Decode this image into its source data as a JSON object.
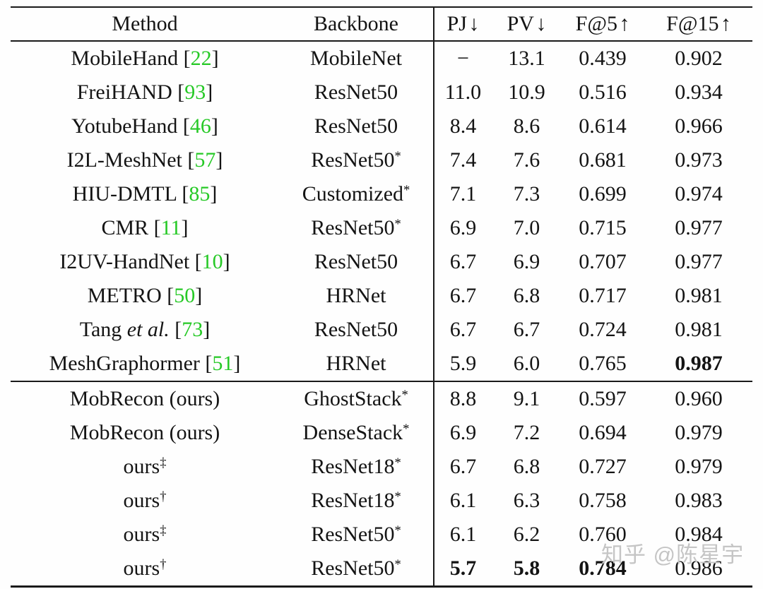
{
  "colors": {
    "citation_green": "#26c926",
    "text": "#141414",
    "rule": "#1a1a1a",
    "background": "#fefefe",
    "watermark_gray": "#c5c5c5"
  },
  "table": {
    "citation_brackets": [
      "[",
      "]"
    ],
    "headers": [
      {
        "key": "method",
        "label": "Method",
        "arrow": ""
      },
      {
        "key": "backbone",
        "label": "Backbone",
        "arrow": ""
      },
      {
        "key": "pj",
        "label": "PJ",
        "arrow": "↓"
      },
      {
        "key": "pv",
        "label": "PV",
        "arrow": "↓"
      },
      {
        "key": "f5",
        "label": "F@5",
        "arrow": "↑"
      },
      {
        "key": "f15",
        "label": "F@15",
        "arrow": "↑"
      }
    ],
    "groups": [
      {
        "name": "prior-methods",
        "rows": [
          {
            "name": "MobileHand",
            "etal": "",
            "cite": "22",
            "sup": "",
            "backbone": "MobileNet",
            "star": "",
            "pj": "−",
            "pv": "13.1",
            "f5": "0.439",
            "f15": "0.902",
            "bold": []
          },
          {
            "name": "FreiHAND",
            "etal": "",
            "cite": "93",
            "sup": "",
            "backbone": "ResNet50",
            "star": "",
            "pj": "11.0",
            "pv": "10.9",
            "f5": "0.516",
            "f15": "0.934",
            "bold": []
          },
          {
            "name": "YotubeHand",
            "etal": "",
            "cite": "46",
            "sup": "",
            "backbone": "ResNet50",
            "star": "",
            "pj": "8.4",
            "pv": "8.6",
            "f5": "0.614",
            "f15": "0.966",
            "bold": []
          },
          {
            "name": "I2L-MeshNet",
            "etal": "",
            "cite": "57",
            "sup": "",
            "backbone": "ResNet50",
            "star": "*",
            "pj": "7.4",
            "pv": "7.6",
            "f5": "0.681",
            "f15": "0.973",
            "bold": []
          },
          {
            "name": "HIU-DMTL",
            "etal": "",
            "cite": "85",
            "sup": "",
            "backbone": "Customized",
            "star": "*",
            "pj": "7.1",
            "pv": "7.3",
            "f5": "0.699",
            "f15": "0.974",
            "bold": []
          },
          {
            "name": "CMR",
            "etal": "",
            "cite": "11",
            "sup": "",
            "backbone": "ResNet50",
            "star": "*",
            "pj": "6.9",
            "pv": "7.0",
            "f5": "0.715",
            "f15": "0.977",
            "bold": []
          },
          {
            "name": "I2UV-HandNet",
            "etal": "",
            "cite": "10",
            "sup": "",
            "backbone": "ResNet50",
            "star": "",
            "pj": "6.7",
            "pv": "6.9",
            "f5": "0.707",
            "f15": "0.977",
            "bold": []
          },
          {
            "name": "METRO",
            "etal": "",
            "cite": "50",
            "sup": "",
            "backbone": "HRNet",
            "star": "",
            "pj": "6.7",
            "pv": "6.8",
            "f5": "0.717",
            "f15": "0.981",
            "bold": []
          },
          {
            "name": "Tang",
            "etal": "et al.",
            "cite": "73",
            "sup": "",
            "backbone": "ResNet50",
            "star": "",
            "pj": "6.7",
            "pv": "6.7",
            "f5": "0.724",
            "f15": "0.981",
            "bold": []
          },
          {
            "name": "MeshGraphormer",
            "etal": "",
            "cite": "51",
            "sup": "",
            "backbone": "HRNet",
            "star": "",
            "pj": "5.9",
            "pv": "6.0",
            "f5": "0.765",
            "f15": "0.987",
            "bold": [
              "f15"
            ]
          }
        ]
      },
      {
        "name": "ours",
        "rows": [
          {
            "name": "MobRecon (ours)",
            "etal": "",
            "cite": "",
            "sup": "",
            "backbone": "GhostStack",
            "star": "*",
            "pj": "8.8",
            "pv": "9.1",
            "f5": "0.597",
            "f15": "0.960",
            "bold": []
          },
          {
            "name": "MobRecon (ours)",
            "etal": "",
            "cite": "",
            "sup": "",
            "backbone": "DenseStack",
            "star": "*",
            "pj": "6.9",
            "pv": "7.2",
            "f5": "0.694",
            "f15": "0.979",
            "bold": []
          },
          {
            "name": "ours",
            "etal": "",
            "cite": "",
            "sup": "‡",
            "backbone": "ResNet18",
            "star": "*",
            "pj": "6.7",
            "pv": "6.8",
            "f5": "0.727",
            "f15": "0.979",
            "bold": []
          },
          {
            "name": "ours",
            "etal": "",
            "cite": "",
            "sup": "†",
            "backbone": "ResNet18",
            "star": "*",
            "pj": "6.1",
            "pv": "6.3",
            "f5": "0.758",
            "f15": "0.983",
            "bold": []
          },
          {
            "name": "ours",
            "etal": "",
            "cite": "",
            "sup": "‡",
            "backbone": "ResNet50",
            "star": "*",
            "pj": "6.1",
            "pv": "6.2",
            "f5": "0.760",
            "f15": "0.984",
            "bold": []
          },
          {
            "name": "ours",
            "etal": "",
            "cite": "",
            "sup": "†",
            "backbone": "ResNet50",
            "star": "*",
            "pj": "5.7",
            "pv": "5.8",
            "f5": "0.784",
            "f15": "0.986",
            "bold": [
              "pj",
              "pv",
              "f5"
            ]
          }
        ]
      }
    ]
  },
  "watermark": {
    "text": "知乎 @陈星宇"
  }
}
